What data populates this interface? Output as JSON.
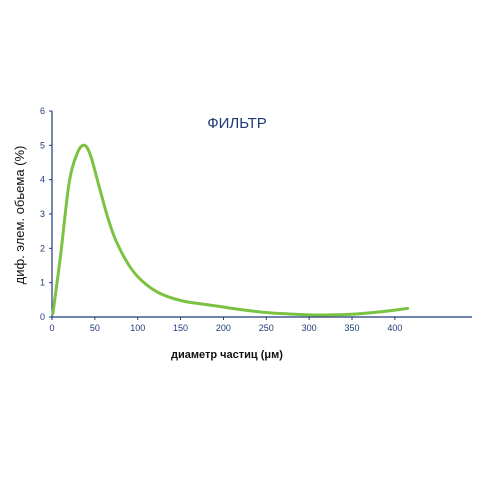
{
  "colors": {
    "axis": "#1f3a7a",
    "curve": "#7cc242",
    "title": "#1f3a7a",
    "ticks": "#1f3a7a",
    "labels": "#111111"
  },
  "chart_data": {
    "type": "line",
    "title": "ФИЛЬТР",
    "xlabel": "диаметр частиц (μм)",
    "ylabel": "диф. элем. обьема (%)",
    "xlim": [
      0,
      490
    ],
    "ylim": [
      0,
      6
    ],
    "x_ticks": [
      0,
      50,
      100,
      150,
      200,
      250,
      300,
      350,
      400
    ],
    "y_ticks": [
      0,
      1,
      2,
      3,
      4,
      5,
      6
    ],
    "grid": false,
    "legend": "none",
    "series": [
      {
        "x": [
          1,
          10,
          20,
          30,
          38,
          45,
          55,
          65,
          75,
          90,
          105,
          125,
          150,
          175,
          200,
          225,
          250,
          275,
          300,
          325,
          350,
          375,
          400,
          415
        ],
        "y": [
          0.1,
          1.8,
          3.9,
          4.8,
          5.0,
          4.7,
          3.8,
          2.9,
          2.2,
          1.5,
          1.05,
          0.7,
          0.48,
          0.38,
          0.29,
          0.2,
          0.13,
          0.09,
          0.06,
          0.06,
          0.08,
          0.13,
          0.2,
          0.25
        ]
      }
    ]
  }
}
